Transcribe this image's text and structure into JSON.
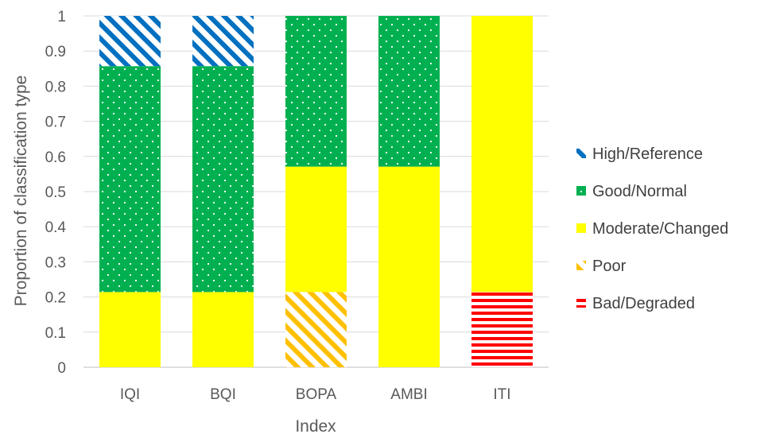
{
  "chart_data": {
    "type": "bar",
    "stacked": true,
    "categories": [
      "IQI",
      "BQI",
      "BOPA",
      "AMBI",
      "ITI"
    ],
    "series": [
      {
        "name": "Bad/Degraded",
        "values": [
          0,
          0,
          0,
          0,
          0.214
        ],
        "color": "#ff0000",
        "pattern": "horizontal-stripes"
      },
      {
        "name": "Poor",
        "values": [
          0,
          0,
          0.214,
          0,
          0
        ],
        "color": "#ffc000",
        "pattern": "diagonal-stripes"
      },
      {
        "name": "Moderate/Changed",
        "values": [
          0.214,
          0.214,
          0.357,
          0.571,
          0.786
        ],
        "color": "#ffff00",
        "pattern": "solid"
      },
      {
        "name": "Good/Normal",
        "values": [
          0.643,
          0.643,
          0.429,
          0.429,
          0
        ],
        "color": "#00b050",
        "pattern": "dots"
      },
      {
        "name": "High/Reference",
        "values": [
          0.143,
          0.143,
          0,
          0,
          0
        ],
        "color": "#0070c0",
        "pattern": "diagonal-stripes"
      }
    ],
    "legend_order": [
      "High/Reference",
      "Good/Normal",
      "Moderate/Changed",
      "Poor",
      "Bad/Degraded"
    ],
    "yticks": [
      "0",
      "0.1",
      "0.2",
      "0.3",
      "0.4",
      "0.5",
      "0.6",
      "0.7",
      "0.8",
      "0.9",
      "1"
    ],
    "ylim": [
      0,
      1
    ],
    "xlabel": "Index",
    "ylabel": "Proportion of classification type",
    "title": "",
    "grid": true,
    "legend_position": "right"
  }
}
